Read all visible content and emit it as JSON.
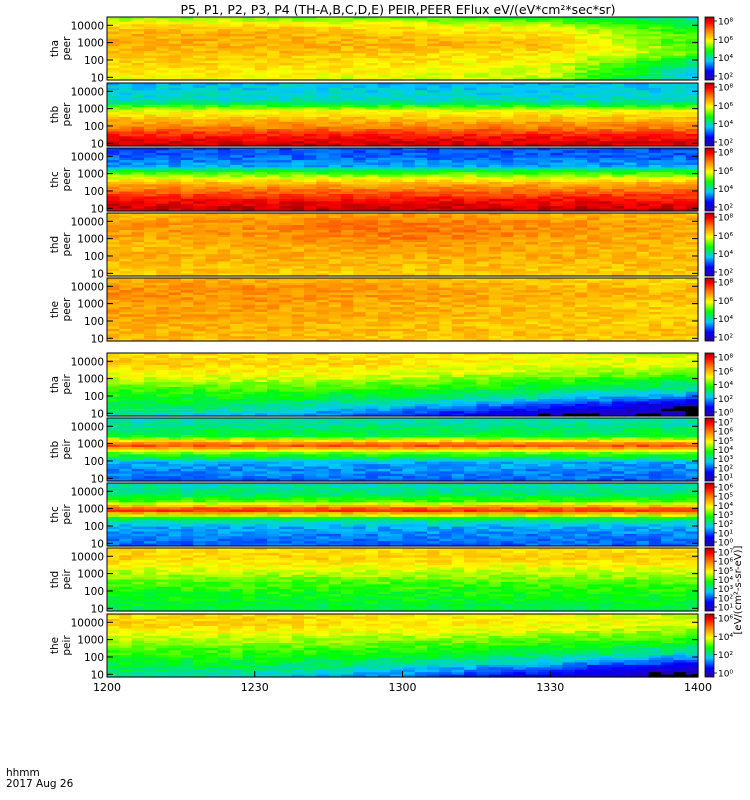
{
  "title": "P5, P1, P2, P3, P4 (TH-A,B,C,D,E) PEIR,PEER EFlux eV/(eV*cm²*sec*sr)",
  "x_axis": {
    "ticks": [
      "1200",
      "1230",
      "1300",
      "1330",
      "1400"
    ],
    "corner_label_1": "hhmm",
    "corner_label_2": "2017 Aug 26"
  },
  "colorbar_unit_label": "[eV/(cm²-s-sr-eV)]",
  "colors": {
    "low": "#0000ff",
    "mid": "#00ff00",
    "high": "#ff0000",
    "saturated": "#a00000",
    "nodata": "#000000"
  },
  "chart_data": [
    {
      "type": "heatmap",
      "probe": "tha",
      "species": "peer",
      "label_line1": "tha",
      "label_line2": "peer",
      "x": {
        "start": "12:00",
        "end": "14:00"
      },
      "ylim": [
        7,
        30000
      ],
      "ylog": true,
      "ytick_labels": [
        "10000",
        "1000",
        "100",
        "10"
      ],
      "colorbar": {
        "labels": [
          "10⁸",
          "10⁶",
          "10⁴",
          "10²"
        ],
        "log": true
      },
      "rows": [
        {
          "energy": 20000,
          "level": [
            0.55,
            0.55,
            0.52,
            0.45,
            0.35
          ]
        },
        {
          "energy": 8000,
          "level": [
            0.68,
            0.68,
            0.65,
            0.6,
            0.45
          ]
        },
        {
          "energy": 3000,
          "level": [
            0.72,
            0.72,
            0.7,
            0.66,
            0.5
          ]
        },
        {
          "energy": 1000,
          "level": [
            0.72,
            0.72,
            0.72,
            0.7,
            0.48
          ]
        },
        {
          "energy": 300,
          "level": [
            0.7,
            0.7,
            0.68,
            0.66,
            0.55
          ]
        },
        {
          "energy": 100,
          "level": [
            0.68,
            0.68,
            0.66,
            0.62,
            0.4
          ]
        },
        {
          "energy": 30,
          "level": [
            0.65,
            0.65,
            0.62,
            0.6,
            0.35
          ]
        },
        {
          "energy": 10,
          "level": [
            0.62,
            0.62,
            0.6,
            0.58,
            0.3
          ]
        }
      ]
    },
    {
      "type": "heatmap",
      "probe": "thb",
      "species": "peer",
      "label_line1": "thb",
      "label_line2": "peer",
      "x": {
        "start": "12:00",
        "end": "14:00"
      },
      "ylim": [
        7,
        30000
      ],
      "ylog": true,
      "ytick_labels": [
        "10000",
        "1000",
        "100",
        "10"
      ],
      "colorbar": {
        "labels": [
          "10⁸",
          "10⁶",
          "10⁴",
          "10²"
        ],
        "log": true
      },
      "rows": [
        {
          "energy": 20000,
          "level": [
            0.3,
            0.3,
            0.3,
            0.3,
            0.3
          ]
        },
        {
          "energy": 8000,
          "level": [
            0.32,
            0.32,
            0.32,
            0.32,
            0.32
          ]
        },
        {
          "energy": 3000,
          "level": [
            0.35,
            0.35,
            0.35,
            0.35,
            0.35
          ]
        },
        {
          "energy": 1000,
          "level": [
            0.6,
            0.6,
            0.6,
            0.6,
            0.6
          ]
        },
        {
          "energy": 300,
          "level": [
            0.7,
            0.7,
            0.7,
            0.7,
            0.7
          ]
        },
        {
          "energy": 100,
          "level": [
            0.78,
            0.78,
            0.78,
            0.78,
            0.78
          ]
        },
        {
          "energy": 30,
          "level": [
            0.9,
            0.9,
            0.9,
            0.9,
            0.9
          ]
        },
        {
          "energy": 10,
          "level": [
            0.96,
            0.96,
            0.96,
            0.96,
            0.96
          ]
        }
      ]
    },
    {
      "type": "heatmap",
      "probe": "thc",
      "species": "peer",
      "label_line1": "thc",
      "label_line2": "peer",
      "x": {
        "start": "12:00",
        "end": "14:00"
      },
      "ylim": [
        7,
        30000
      ],
      "ylog": true,
      "ytick_labels": [
        "10000",
        "1000",
        "100",
        "10"
      ],
      "colorbar": {
        "labels": [
          "10⁸",
          "10⁶",
          "10⁴",
          "10²"
        ],
        "log": true
      },
      "rows": [
        {
          "energy": 20000,
          "level": [
            0.2,
            0.2,
            0.2,
            0.2,
            0.2
          ]
        },
        {
          "energy": 8000,
          "level": [
            0.22,
            0.22,
            0.22,
            0.22,
            0.22
          ]
        },
        {
          "energy": 3000,
          "level": [
            0.28,
            0.28,
            0.28,
            0.28,
            0.28
          ]
        },
        {
          "energy": 1000,
          "level": [
            0.55,
            0.55,
            0.55,
            0.55,
            0.55
          ]
        },
        {
          "energy": 300,
          "level": [
            0.72,
            0.72,
            0.72,
            0.72,
            0.72
          ]
        },
        {
          "energy": 100,
          "level": [
            0.82,
            0.82,
            0.82,
            0.82,
            0.82
          ]
        },
        {
          "energy": 30,
          "level": [
            0.92,
            0.92,
            0.92,
            0.92,
            0.92
          ]
        },
        {
          "energy": 10,
          "level": [
            0.97,
            0.97,
            0.97,
            0.97,
            0.97
          ]
        }
      ]
    },
    {
      "type": "heatmap",
      "probe": "thd",
      "species": "peer",
      "label_line1": "thd",
      "label_line2": "peer",
      "x": {
        "start": "12:00",
        "end": "14:00"
      },
      "ylim": [
        7,
        30000
      ],
      "ylog": true,
      "ytick_labels": [
        "10000",
        "1000",
        "100",
        "10"
      ],
      "colorbar": {
        "labels": [
          "10⁸",
          "10⁶",
          "10⁴",
          "10²"
        ],
        "log": true
      },
      "rows": [
        {
          "energy": 20000,
          "level": [
            0.7,
            0.72,
            0.74,
            0.72,
            0.7
          ]
        },
        {
          "energy": 8000,
          "level": [
            0.74,
            0.76,
            0.8,
            0.76,
            0.74
          ]
        },
        {
          "energy": 3000,
          "level": [
            0.74,
            0.76,
            0.8,
            0.76,
            0.72
          ]
        },
        {
          "energy": 1000,
          "level": [
            0.72,
            0.74,
            0.78,
            0.74,
            0.72
          ]
        },
        {
          "energy": 300,
          "level": [
            0.7,
            0.72,
            0.74,
            0.72,
            0.7
          ]
        },
        {
          "energy": 100,
          "level": [
            0.72,
            0.72,
            0.72,
            0.72,
            0.7
          ]
        },
        {
          "energy": 30,
          "level": [
            0.7,
            0.7,
            0.7,
            0.7,
            0.7
          ]
        },
        {
          "energy": 10,
          "level": [
            0.68,
            0.68,
            0.68,
            0.68,
            0.68
          ]
        }
      ]
    },
    {
      "type": "heatmap",
      "probe": "the",
      "species": "peer",
      "label_line1": "the",
      "label_line2": "peer",
      "x": {
        "start": "12:00",
        "end": "14:00"
      },
      "ylim": [
        7,
        30000
      ],
      "ylog": true,
      "ytick_labels": [
        "10000",
        "1000",
        "100",
        "10"
      ],
      "colorbar": {
        "labels": [
          "10⁸",
          "10⁶",
          "10⁴",
          "10²"
        ],
        "log": true
      },
      "rows": [
        {
          "energy": 20000,
          "level": [
            0.72,
            0.72,
            0.7,
            0.68,
            0.66
          ]
        },
        {
          "energy": 8000,
          "level": [
            0.76,
            0.76,
            0.74,
            0.72,
            0.7
          ]
        },
        {
          "energy": 3000,
          "level": [
            0.76,
            0.76,
            0.74,
            0.72,
            0.7
          ]
        },
        {
          "energy": 1000,
          "level": [
            0.74,
            0.74,
            0.72,
            0.7,
            0.68
          ]
        },
        {
          "energy": 300,
          "level": [
            0.74,
            0.74,
            0.72,
            0.7,
            0.68
          ]
        },
        {
          "energy": 100,
          "level": [
            0.72,
            0.72,
            0.7,
            0.68,
            0.68
          ]
        },
        {
          "energy": 30,
          "level": [
            0.72,
            0.72,
            0.7,
            0.7,
            0.7
          ]
        },
        {
          "energy": 10,
          "level": [
            0.7,
            0.7,
            0.68,
            0.68,
            0.68
          ]
        }
      ]
    },
    {
      "type": "heatmap",
      "probe": "tha",
      "species": "peir",
      "label_line1": "tha",
      "label_line2": "peir",
      "x": {
        "start": "12:00",
        "end": "14:00"
      },
      "ylim": [
        7,
        30000
      ],
      "ylog": true,
      "ytick_labels": [
        "10000",
        "1000",
        "100",
        "10"
      ],
      "colorbar": {
        "labels": [
          "10⁸",
          "10⁶",
          "10⁴",
          "10²",
          "10⁰"
        ],
        "log": true
      },
      "rows": [
        {
          "energy": 20000,
          "level": [
            0.66,
            0.66,
            0.64,
            0.62,
            0.58
          ]
        },
        {
          "energy": 8000,
          "level": [
            0.68,
            0.68,
            0.66,
            0.62,
            0.6
          ]
        },
        {
          "energy": 3000,
          "level": [
            0.64,
            0.64,
            0.62,
            0.58,
            0.55
          ]
        },
        {
          "energy": 1000,
          "level": [
            0.58,
            0.58,
            0.56,
            0.5,
            0.44
          ]
        },
        {
          "energy": 300,
          "level": [
            0.5,
            0.5,
            0.48,
            0.42,
            0.36
          ]
        },
        {
          "energy": 100,
          "level": [
            0.46,
            0.44,
            0.4,
            0.34,
            0.22
          ]
        },
        {
          "energy": 30,
          "level": [
            0.42,
            0.38,
            0.3,
            0.18,
            0.05
          ]
        },
        {
          "energy": 10,
          "level": [
            0.36,
            0.3,
            0.18,
            0.05,
            0.0
          ]
        }
      ]
    },
    {
      "type": "heatmap",
      "probe": "thb",
      "species": "peir",
      "label_line1": "thb",
      "label_line2": "peir",
      "x": {
        "start": "12:00",
        "end": "14:00"
      },
      "ylim": [
        7,
        30000
      ],
      "ylog": true,
      "ytick_labels": [
        "10000",
        "1000",
        "100",
        "10"
      ],
      "colorbar": {
        "labels": [
          "10⁷",
          "10⁶",
          "10⁵",
          "10⁴",
          "10³",
          "10²",
          "10¹"
        ],
        "log": true
      },
      "rows": [
        {
          "energy": 20000,
          "level": [
            0.35,
            0.35,
            0.35,
            0.35,
            0.35
          ]
        },
        {
          "energy": 8000,
          "level": [
            0.38,
            0.38,
            0.38,
            0.38,
            0.38
          ]
        },
        {
          "energy": 3000,
          "level": [
            0.45,
            0.45,
            0.45,
            0.45,
            0.45
          ]
        },
        {
          "energy": 1000,
          "level": [
            0.85,
            0.85,
            0.85,
            0.85,
            0.85
          ]
        },
        {
          "energy": 300,
          "level": [
            0.5,
            0.5,
            0.5,
            0.5,
            0.5
          ]
        },
        {
          "energy": 100,
          "level": [
            0.28,
            0.28,
            0.28,
            0.28,
            0.28
          ]
        },
        {
          "energy": 30,
          "level": [
            0.25,
            0.25,
            0.25,
            0.25,
            0.25
          ]
        },
        {
          "energy": 10,
          "level": [
            0.22,
            0.22,
            0.22,
            0.22,
            0.22
          ]
        }
      ]
    },
    {
      "type": "heatmap",
      "probe": "thc",
      "species": "peir",
      "label_line1": "thc",
      "label_line2": "peir",
      "x": {
        "start": "12:00",
        "end": "14:00"
      },
      "ylim": [
        7,
        30000
      ],
      "ylog": true,
      "ytick_labels": [
        "10000",
        "1000",
        "100",
        "10"
      ],
      "colorbar": {
        "labels": [
          "10⁶",
          "10⁵",
          "10⁴",
          "10³",
          "10²",
          "10¹",
          "10⁰"
        ],
        "log": true
      },
      "rows": [
        {
          "energy": 20000,
          "level": [
            0.35,
            0.35,
            0.35,
            0.35,
            0.35
          ]
        },
        {
          "energy": 8000,
          "level": [
            0.38,
            0.38,
            0.38,
            0.38,
            0.38
          ]
        },
        {
          "energy": 3000,
          "level": [
            0.5,
            0.5,
            0.5,
            0.5,
            0.5
          ]
        },
        {
          "energy": 1000,
          "level": [
            0.9,
            0.9,
            0.9,
            0.9,
            0.9
          ]
        },
        {
          "energy": 300,
          "level": [
            0.4,
            0.4,
            0.4,
            0.4,
            0.4
          ]
        },
        {
          "energy": 100,
          "level": [
            0.28,
            0.28,
            0.28,
            0.28,
            0.28
          ]
        },
        {
          "energy": 30,
          "level": [
            0.24,
            0.24,
            0.24,
            0.24,
            0.24
          ]
        },
        {
          "energy": 10,
          "level": [
            0.22,
            0.22,
            0.22,
            0.22,
            0.22
          ]
        }
      ]
    },
    {
      "type": "heatmap",
      "probe": "thd",
      "species": "peir",
      "label_line1": "thd",
      "label_line2": "peir",
      "x": {
        "start": "12:00",
        "end": "14:00"
      },
      "ylim": [
        7,
        30000
      ],
      "ylog": true,
      "ytick_labels": [
        "10000",
        "1000",
        "100",
        "10"
      ],
      "colorbar": {
        "labels": [
          "10⁷",
          "10⁶",
          "10⁵",
          "10⁴",
          "10³",
          "10²",
          "10¹"
        ],
        "log": true
      },
      "rows": [
        {
          "energy": 20000,
          "level": [
            0.66,
            0.66,
            0.66,
            0.66,
            0.66
          ]
        },
        {
          "energy": 8000,
          "level": [
            0.68,
            0.68,
            0.68,
            0.68,
            0.68
          ]
        },
        {
          "energy": 3000,
          "level": [
            0.62,
            0.62,
            0.62,
            0.62,
            0.62
          ]
        },
        {
          "energy": 1000,
          "level": [
            0.56,
            0.56,
            0.56,
            0.56,
            0.56
          ]
        },
        {
          "energy": 300,
          "level": [
            0.5,
            0.5,
            0.5,
            0.5,
            0.5
          ]
        },
        {
          "energy": 100,
          "level": [
            0.46,
            0.46,
            0.46,
            0.46,
            0.46
          ]
        },
        {
          "energy": 30,
          "level": [
            0.44,
            0.44,
            0.44,
            0.44,
            0.44
          ]
        },
        {
          "energy": 10,
          "level": [
            0.42,
            0.42,
            0.42,
            0.42,
            0.42
          ]
        }
      ]
    },
    {
      "type": "heatmap",
      "probe": "the",
      "species": "peir",
      "label_line1": "the",
      "label_line2": "peir",
      "x": {
        "start": "12:00",
        "end": "14:00"
      },
      "ylim": [
        7,
        30000
      ],
      "ylog": true,
      "ytick_labels": [
        "10000",
        "1000",
        "100",
        "10"
      ],
      "colorbar": {
        "labels": [
          "10⁶",
          "10⁴",
          "10²",
          "10⁰"
        ],
        "log": true
      },
      "rows": [
        {
          "energy": 20000,
          "level": [
            0.66,
            0.66,
            0.64,
            0.62,
            0.6
          ]
        },
        {
          "energy": 8000,
          "level": [
            0.68,
            0.68,
            0.66,
            0.64,
            0.6
          ]
        },
        {
          "energy": 3000,
          "level": [
            0.62,
            0.62,
            0.6,
            0.58,
            0.54
          ]
        },
        {
          "energy": 1000,
          "level": [
            0.56,
            0.56,
            0.54,
            0.5,
            0.46
          ]
        },
        {
          "energy": 300,
          "level": [
            0.5,
            0.5,
            0.48,
            0.44,
            0.38
          ]
        },
        {
          "energy": 100,
          "level": [
            0.46,
            0.46,
            0.42,
            0.36,
            0.26
          ]
        },
        {
          "energy": 30,
          "level": [
            0.42,
            0.4,
            0.34,
            0.22,
            0.08
          ]
        },
        {
          "energy": 10,
          "level": [
            0.38,
            0.34,
            0.24,
            0.1,
            0.0
          ]
        }
      ]
    }
  ]
}
